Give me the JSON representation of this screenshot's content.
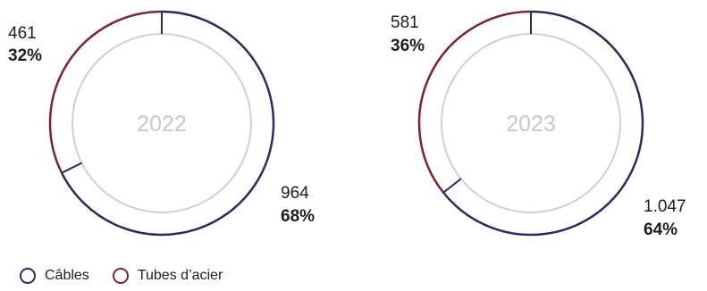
{
  "chart_data": [
    {
      "type": "pie",
      "center_label": "2022",
      "slices": [
        {
          "name": "Câbles",
          "value": 964,
          "value_label": "964",
          "pct_label": "68%",
          "color": "#2a2d5c"
        },
        {
          "name": "Tubes d'acier",
          "value": 461,
          "value_label": "461",
          "pct_label": "32%",
          "color": "#7b2334"
        }
      ]
    },
    {
      "type": "pie",
      "center_label": "2023",
      "slices": [
        {
          "name": "Câbles",
          "value": 1047,
          "value_label": "1.047",
          "pct_label": "64%",
          "color": "#2a2d5c"
        },
        {
          "name": "Tubes d'acier",
          "value": 581,
          "value_label": "581",
          "pct_label": "36%",
          "color": "#7b2334"
        }
      ]
    }
  ],
  "legend": [
    {
      "label": "Câbles",
      "color": "#2a2d5c"
    },
    {
      "label": "Tubes d’acier",
      "color": "#7b2334"
    }
  ],
  "inner_ring_color": "#d0d0d0"
}
